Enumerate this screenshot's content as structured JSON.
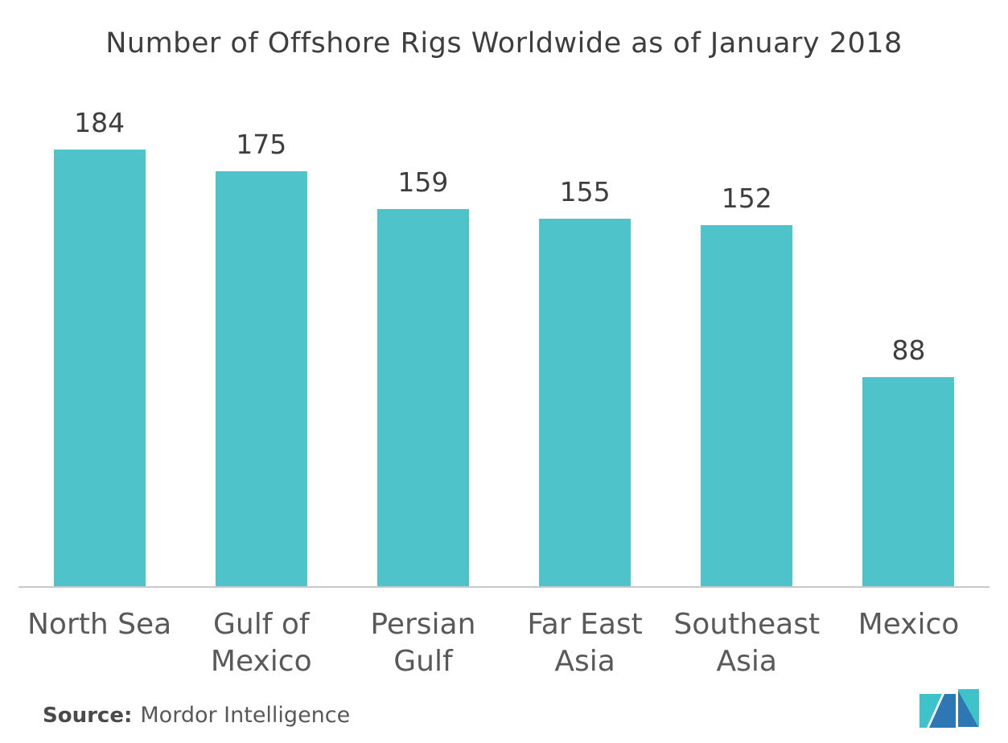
{
  "chart_data": {
    "type": "bar",
    "title": "Number of Offshore Rigs Worldwide as of January 2018",
    "categories": [
      "North Sea",
      "Gulf of Mexico",
      "Persian Gulf",
      "Far East Asia",
      "Southeast Asia",
      "Mexico"
    ],
    "category_labels": [
      "North Sea",
      "Gulf of\nMexico",
      "Persian\nGulf",
      "Far East\nAsia",
      "Southeast\nAsia",
      "Mexico"
    ],
    "values": [
      184,
      175,
      159,
      155,
      152,
      88
    ],
    "xlabel": "",
    "ylabel": "",
    "ylim": [
      0,
      200
    ],
    "grid": false,
    "legend": false,
    "data_labels": true,
    "baseline_axis": true
  },
  "source": {
    "label": "Source:",
    "text": "Mordor Intelligence"
  },
  "logo": {
    "alt": "mordor-intelligence-logo-mark"
  },
  "colors": {
    "background": "#FFFFFF",
    "bar": "#4FC3CA",
    "title_text": "#3E3E40",
    "value_text": "#3E3E40",
    "category_text": "#59595B",
    "axis_line": "#C9C9C9",
    "source_label_text": "#4A4A4C",
    "source_text": "#58585A",
    "logo_teal": "#3EC3CB",
    "logo_blue": "#2E77B5"
  }
}
